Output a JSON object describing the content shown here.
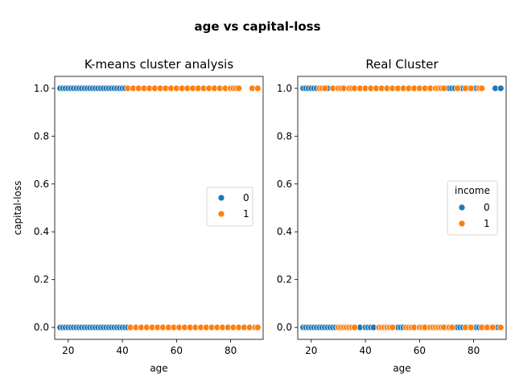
{
  "figure": {
    "suptitle": "age vs capital-loss"
  },
  "chart_data": [
    {
      "type": "scatter",
      "title": "K-means cluster analysis",
      "xlabel": "age",
      "ylabel": "capital-loss",
      "xlim": [
        15,
        92
      ],
      "ylim": [
        -0.05,
        1.05
      ],
      "xticks": [
        20,
        40,
        60,
        80
      ],
      "yticks": [
        0.0,
        0.2,
        0.4,
        0.6,
        0.8,
        1.0
      ],
      "grid": false,
      "legend": {
        "title": "",
        "placement": "center-right",
        "entries": [
          "0",
          "1"
        ]
      },
      "series": [
        {
          "name": "0",
          "color": "#1f77b4",
          "points": [
            [
              17,
              1
            ],
            [
              18,
              1
            ],
            [
              19,
              1
            ],
            [
              20,
              1
            ],
            [
              21,
              1
            ],
            [
              22,
              1
            ],
            [
              23,
              1
            ],
            [
              24,
              1
            ],
            [
              25,
              1
            ],
            [
              26,
              1
            ],
            [
              27,
              1
            ],
            [
              28,
              1
            ],
            [
              29,
              1
            ],
            [
              30,
              1
            ],
            [
              31,
              1
            ],
            [
              32,
              1
            ],
            [
              33,
              1
            ],
            [
              34,
              1
            ],
            [
              35,
              1
            ],
            [
              36,
              1
            ],
            [
              37,
              1
            ],
            [
              38,
              1
            ],
            [
              39,
              1
            ],
            [
              40,
              1
            ],
            [
              41,
              1
            ],
            [
              17,
              0
            ],
            [
              18,
              0
            ],
            [
              19,
              0
            ],
            [
              20,
              0
            ],
            [
              21,
              0
            ],
            [
              22,
              0
            ],
            [
              23,
              0
            ],
            [
              24,
              0
            ],
            [
              25,
              0
            ],
            [
              26,
              0
            ],
            [
              27,
              0
            ],
            [
              28,
              0
            ],
            [
              29,
              0
            ],
            [
              30,
              0
            ],
            [
              31,
              0
            ],
            [
              32,
              0
            ],
            [
              33,
              0
            ],
            [
              34,
              0
            ],
            [
              35,
              0
            ],
            [
              36,
              0
            ],
            [
              37,
              0
            ],
            [
              38,
              0
            ],
            [
              39,
              0
            ],
            [
              40,
              0
            ],
            [
              41,
              0
            ],
            [
              42,
              0
            ]
          ]
        },
        {
          "name": "1",
          "color": "#ff7f0e",
          "points": [
            [
              42,
              1
            ],
            [
              44,
              1
            ],
            [
              46,
              1
            ],
            [
              48,
              1
            ],
            [
              50,
              1
            ],
            [
              52,
              1
            ],
            [
              54,
              1
            ],
            [
              56,
              1
            ],
            [
              58,
              1
            ],
            [
              60,
              1
            ],
            [
              62,
              1
            ],
            [
              64,
              1
            ],
            [
              66,
              1
            ],
            [
              68,
              1
            ],
            [
              70,
              1
            ],
            [
              72,
              1
            ],
            [
              74,
              1
            ],
            [
              76,
              1
            ],
            [
              78,
              1
            ],
            [
              80,
              1
            ],
            [
              81,
              1
            ],
            [
              82,
              1
            ],
            [
              83,
              1
            ],
            [
              88,
              1
            ],
            [
              90,
              1
            ],
            [
              43,
              0
            ],
            [
              45,
              0
            ],
            [
              47,
              0
            ],
            [
              49,
              0
            ],
            [
              51,
              0
            ],
            [
              53,
              0
            ],
            [
              55,
              0
            ],
            [
              57,
              0
            ],
            [
              59,
              0
            ],
            [
              61,
              0
            ],
            [
              63,
              0
            ],
            [
              65,
              0
            ],
            [
              67,
              0
            ],
            [
              69,
              0
            ],
            [
              71,
              0
            ],
            [
              73,
              0
            ],
            [
              75,
              0
            ],
            [
              77,
              0
            ],
            [
              79,
              0
            ],
            [
              81,
              0
            ],
            [
              83,
              0
            ],
            [
              85,
              0
            ],
            [
              87,
              0
            ],
            [
              89,
              0
            ],
            [
              90,
              0
            ]
          ]
        }
      ]
    },
    {
      "type": "scatter",
      "title": "Real Cluster",
      "xlabel": "age",
      "ylabel": "",
      "xlim": [
        15,
        92
      ],
      "ylim": [
        -0.05,
        1.05
      ],
      "xticks": [
        20,
        40,
        60,
        80
      ],
      "yticks": [
        0.0,
        0.2,
        0.4,
        0.6,
        0.8,
        1.0
      ],
      "grid": false,
      "legend": {
        "title": "income",
        "placement": "center-right",
        "entries": [
          "0",
          "1"
        ]
      },
      "series": [
        {
          "name": "0",
          "color": "#1f77b4",
          "points": [
            [
              17,
              1
            ],
            [
              18,
              1
            ],
            [
              19,
              1
            ],
            [
              20,
              1
            ],
            [
              21,
              1
            ],
            [
              22,
              1
            ],
            [
              26,
              1
            ],
            [
              70,
              1
            ],
            [
              71,
              1
            ],
            [
              72,
              1
            ],
            [
              73,
              1
            ],
            [
              75,
              1
            ],
            [
              76,
              1
            ],
            [
              78,
              1
            ],
            [
              80,
              1
            ],
            [
              81,
              1
            ],
            [
              88,
              1
            ],
            [
              90,
              1
            ],
            [
              17,
              0
            ],
            [
              18,
              0
            ],
            [
              19,
              0
            ],
            [
              20,
              0
            ],
            [
              21,
              0
            ],
            [
              22,
              0
            ],
            [
              23,
              0
            ],
            [
              24,
              0
            ],
            [
              25,
              0
            ],
            [
              26,
              0
            ],
            [
              27,
              0
            ],
            [
              28,
              0
            ],
            [
              29,
              0
            ],
            [
              30,
              0
            ],
            [
              38,
              0
            ],
            [
              40,
              0
            ],
            [
              41,
              0
            ],
            [
              42,
              0
            ],
            [
              43,
              0
            ],
            [
              52,
              0
            ],
            [
              53,
              0
            ],
            [
              54,
              0
            ],
            [
              63,
              0
            ],
            [
              70,
              0
            ],
            [
              73,
              0
            ],
            [
              74,
              0
            ],
            [
              75,
              0
            ],
            [
              76,
              0
            ],
            [
              78,
              0
            ],
            [
              80,
              0
            ],
            [
              81,
              0
            ],
            [
              82,
              0
            ],
            [
              84,
              0
            ],
            [
              86,
              0
            ],
            [
              88,
              0
            ],
            [
              89,
              0
            ]
          ]
        },
        {
          "name": "1",
          "color": "#ff7f0e",
          "points": [
            [
              23,
              1
            ],
            [
              24,
              1
            ],
            [
              25,
              1
            ],
            [
              28,
              1
            ],
            [
              30,
              1
            ],
            [
              31,
              1
            ],
            [
              32,
              1
            ],
            [
              34,
              1
            ],
            [
              35,
              1
            ],
            [
              36,
              1
            ],
            [
              38,
              1
            ],
            [
              40,
              1
            ],
            [
              42,
              1
            ],
            [
              44,
              1
            ],
            [
              46,
              1
            ],
            [
              48,
              1
            ],
            [
              50,
              1
            ],
            [
              52,
              1
            ],
            [
              54,
              1
            ],
            [
              56,
              1
            ],
            [
              58,
              1
            ],
            [
              60,
              1
            ],
            [
              62,
              1
            ],
            [
              64,
              1
            ],
            [
              66,
              1
            ],
            [
              67,
              1
            ],
            [
              68,
              1
            ],
            [
              69,
              1
            ],
            [
              74,
              1
            ],
            [
              77,
              1
            ],
            [
              79,
              1
            ],
            [
              82,
              1
            ],
            [
              83,
              1
            ],
            [
              30,
              0
            ],
            [
              31,
              0
            ],
            [
              32,
              0
            ],
            [
              33,
              0
            ],
            [
              34,
              0
            ],
            [
              35,
              0
            ],
            [
              36,
              0
            ],
            [
              45,
              0
            ],
            [
              46,
              0
            ],
            [
              47,
              0
            ],
            [
              48,
              0
            ],
            [
              49,
              0
            ],
            [
              50,
              0
            ],
            [
              55,
              0
            ],
            [
              56,
              0
            ],
            [
              57,
              0
            ],
            [
              58,
              0
            ],
            [
              60,
              0
            ],
            [
              61,
              0
            ],
            [
              62,
              0
            ],
            [
              64,
              0
            ],
            [
              65,
              0
            ],
            [
              66,
              0
            ],
            [
              67,
              0
            ],
            [
              68,
              0
            ],
            [
              69,
              0
            ],
            [
              71,
              0
            ],
            [
              72,
              0
            ],
            [
              77,
              0
            ],
            [
              79,
              0
            ],
            [
              83,
              0
            ],
            [
              85,
              0
            ],
            [
              87,
              0
            ],
            [
              90,
              0
            ]
          ]
        }
      ]
    }
  ]
}
